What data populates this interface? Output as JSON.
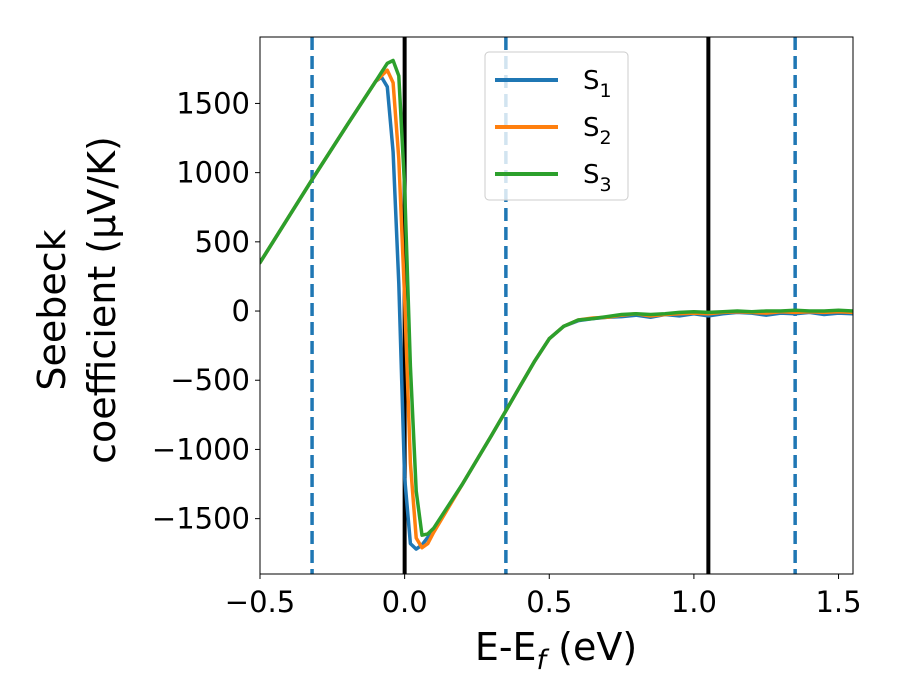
{
  "chart_data": {
    "type": "line",
    "xlabel": {
      "main": "E-E",
      "sub": "f",
      "unit": " (eV)"
    },
    "ylabel": {
      "line1": "Seebeck",
      "line2": "coefficient  (μV/K)"
    },
    "xlim": [
      -0.5,
      1.55
    ],
    "ylim": [
      -1900,
      1980
    ],
    "xticks": [
      -0.5,
      0.0,
      0.5,
      1.0,
      1.5
    ],
    "xtick_labels": [
      "−0.5",
      "0.0",
      "0.5",
      "1.0",
      "1.5"
    ],
    "yticks": [
      1500,
      1000,
      500,
      0,
      -500,
      -1000,
      -1500
    ],
    "ytick_labels": [
      "1500",
      "1000",
      "500",
      "0",
      "−500",
      "−1000",
      "−1500"
    ],
    "vlines_solid": [
      0.0,
      1.05
    ],
    "vlines_dashed": [
      -0.32,
      0.35,
      1.35
    ],
    "legend_position": "top-center",
    "series": [
      {
        "name": "S",
        "sub": "1",
        "color": "#1f77b4",
        "x": [
          -0.5,
          -0.32,
          -0.2,
          -0.1,
          -0.08,
          -0.06,
          -0.04,
          -0.02,
          0.0,
          0.02,
          0.04,
          0.06,
          0.1,
          0.2,
          0.3,
          0.35,
          0.4,
          0.45,
          0.5,
          0.55,
          0.6,
          0.65,
          0.7,
          0.75,
          0.8,
          0.85,
          0.9,
          0.95,
          1.0,
          1.05,
          1.1,
          1.15,
          1.2,
          1.25,
          1.3,
          1.35,
          1.4,
          1.45,
          1.5,
          1.55
        ],
        "y": [
          350,
          950,
          1340,
          1660,
          1690,
          1620,
          1150,
          200,
          -1200,
          -1680,
          -1720,
          -1690,
          -1580,
          -1250,
          -900,
          -720,
          -540,
          -360,
          -200,
          -110,
          -70,
          -55,
          -45,
          -40,
          -30,
          -45,
          -25,
          -35,
          -20,
          -35,
          -20,
          -10,
          -15,
          -30,
          -15,
          -20,
          -10,
          -25,
          -15,
          -20
        ]
      },
      {
        "name": "S",
        "sub": "2",
        "color": "#ff7f0e",
        "x": [
          -0.5,
          -0.32,
          -0.2,
          -0.1,
          -0.06,
          -0.04,
          -0.02,
          0.0,
          0.02,
          0.04,
          0.06,
          0.08,
          0.1,
          0.2,
          0.3,
          0.35,
          0.4,
          0.45,
          0.5,
          0.55,
          0.6,
          0.65,
          0.7,
          0.75,
          0.8,
          0.85,
          0.9,
          0.95,
          1.0,
          1.05,
          1.1,
          1.15,
          1.2,
          1.25,
          1.3,
          1.35,
          1.4,
          1.45,
          1.5,
          1.55
        ],
        "y": [
          350,
          950,
          1340,
          1660,
          1740,
          1650,
          1100,
          100,
          -1100,
          -1640,
          -1710,
          -1680,
          -1600,
          -1250,
          -900,
          -720,
          -540,
          -360,
          -200,
          -110,
          -65,
          -50,
          -45,
          -30,
          -20,
          -35,
          -25,
          -20,
          -15,
          -20,
          -10,
          -5,
          -10,
          -15,
          -5,
          -10,
          -5,
          -10,
          -5,
          -10
        ]
      },
      {
        "name": "S",
        "sub": "3",
        "color": "#2ca02c",
        "x": [
          -0.5,
          -0.32,
          -0.2,
          -0.1,
          -0.06,
          -0.04,
          -0.02,
          0.0,
          0.02,
          0.04,
          0.06,
          0.08,
          0.1,
          0.2,
          0.3,
          0.35,
          0.4,
          0.45,
          0.5,
          0.55,
          0.6,
          0.65,
          0.7,
          0.75,
          0.8,
          0.85,
          0.9,
          0.95,
          1.0,
          1.05,
          1.1,
          1.15,
          1.2,
          1.25,
          1.3,
          1.35,
          1.4,
          1.45,
          1.5,
          1.55
        ],
        "y": [
          350,
          950,
          1340,
          1660,
          1790,
          1810,
          1700,
          900,
          -400,
          -1300,
          -1620,
          -1610,
          -1570,
          -1250,
          -900,
          -720,
          -540,
          -360,
          -200,
          -110,
          -65,
          -55,
          -40,
          -25,
          -20,
          -25,
          -20,
          -10,
          -5,
          -10,
          -5,
          0,
          -5,
          0,
          0,
          5,
          0,
          0,
          5,
          0
        ]
      }
    ]
  }
}
